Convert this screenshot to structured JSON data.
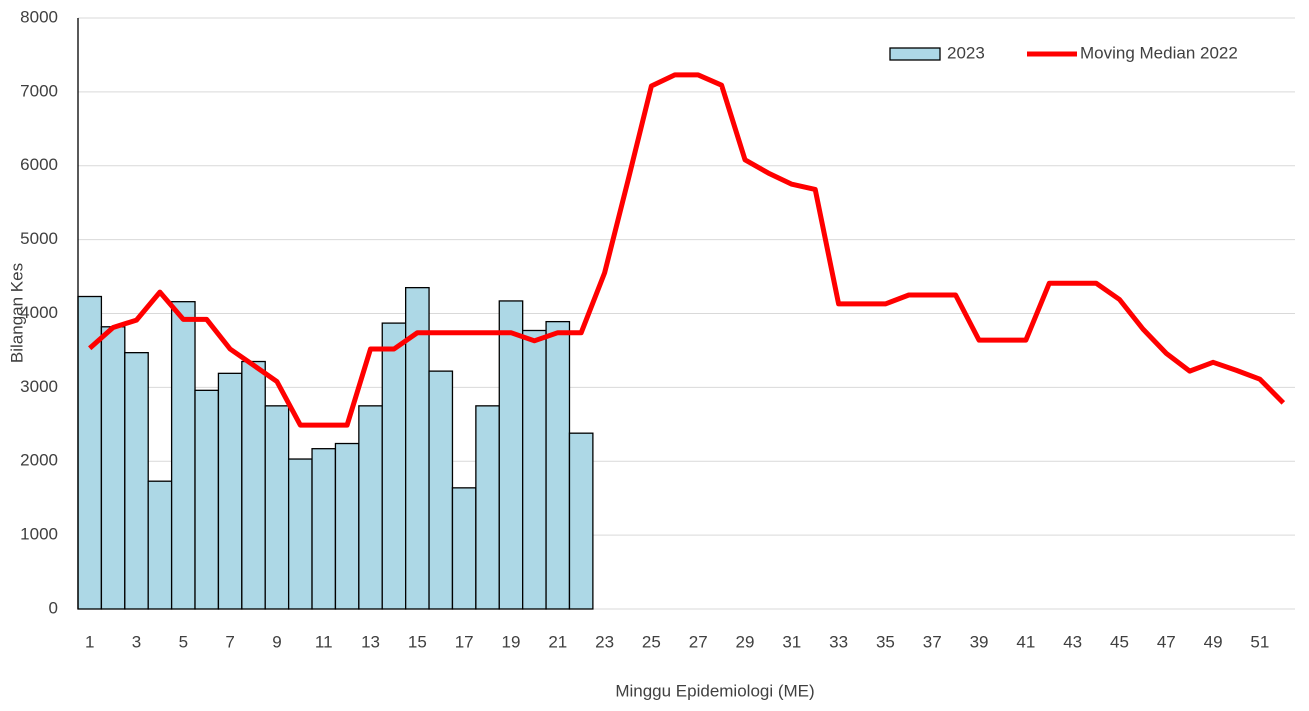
{
  "chart_data": {
    "type": "bar+line",
    "x_label": "Minggu Epidemiologi (ME)",
    "y_label": "Bilangan Kes",
    "categories": [
      "1",
      null,
      "3",
      null,
      "5",
      null,
      "7",
      null,
      "9",
      null,
      "11",
      null,
      "13",
      null,
      "15",
      null,
      "17",
      null,
      "19",
      null,
      "21",
      null,
      "23",
      null,
      "25",
      null,
      "27",
      null,
      "29",
      null,
      "31",
      null,
      "33",
      null,
      "35",
      null,
      "37",
      null,
      "39",
      null,
      "41",
      null,
      "43",
      null,
      "45",
      null,
      "47",
      null,
      "49",
      null,
      "51",
      null
    ],
    "series": [
      {
        "name": "2023",
        "type": "bar",
        "color": "#add8e6",
        "values": [
          4230,
          3820,
          3470,
          1730,
          4160,
          2960,
          3190,
          3350,
          2750,
          2030,
          2170,
          2240,
          2750,
          3870,
          4350,
          3220,
          1640,
          2750,
          4170,
          3770,
          3890,
          2380,
          null,
          null,
          null,
          null,
          null,
          null,
          null,
          null,
          null,
          null,
          null,
          null,
          null,
          null,
          null,
          null,
          null,
          null,
          null,
          null,
          null,
          null,
          null,
          null,
          null,
          null,
          null,
          null,
          null,
          null
        ]
      },
      {
        "name": "Moving Median 2022",
        "type": "line",
        "color": "#ff0000",
        "values": [
          3530,
          3810,
          3910,
          4290,
          3920,
          3920,
          3520,
          3300,
          3080,
          2490,
          2490,
          2490,
          3520,
          3520,
          3740,
          3740,
          3740,
          3740,
          3740,
          3630,
          3740,
          3740,
          4550,
          5800,
          7080,
          7230,
          7230,
          7090,
          6080,
          5900,
          5750,
          5680,
          4130,
          4130,
          4130,
          4250,
          4250,
          4250,
          3640,
          3640,
          3640,
          4410,
          4410,
          4410,
          4190,
          3790,
          3460,
          3220,
          3340,
          3230,
          3110,
          2790
        ]
      }
    ],
    "ylim": [
      0,
      8000
    ],
    "yticks": [
      0,
      1000,
      2000,
      3000,
      4000,
      5000,
      6000,
      7000,
      8000
    ],
    "grid": true,
    "legend": "upper right"
  }
}
